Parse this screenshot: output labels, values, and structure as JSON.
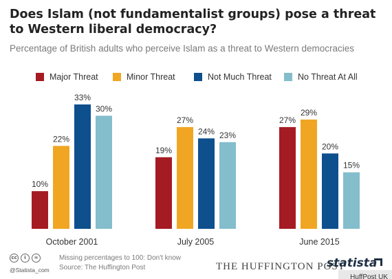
{
  "title": "Does Islam (not fundamentalist groups) pose a threat to Western liberal democracy?",
  "subtitle": "Percentage of British adults who perceive Islam as a threat to Western democracies",
  "chart_data": {
    "type": "bar",
    "title": "Does Islam (not fundamentalist groups) pose a threat to Western liberal democracy?",
    "subtitle": "Percentage of British adults who perceive Islam as a threat to Western democracies",
    "categories": [
      "October 2001",
      "July 2005",
      "June 2015"
    ],
    "series": [
      {
        "name": "Major Threat",
        "values": [
          10,
          19,
          27
        ],
        "labels": [
          "10%",
          "19%",
          "27%"
        ],
        "color": "#a51b24"
      },
      {
        "name": "Minor Threat",
        "values": [
          22,
          27,
          29
        ],
        "labels": [
          "22%",
          "27%",
          "29%"
        ],
        "color": "#f0a623"
      },
      {
        "name": "Not Much Threat",
        "values": [
          33,
          24,
          20
        ],
        "labels": [
          "33%",
          "24%",
          "20%"
        ],
        "color": "#0e4f8e"
      },
      {
        "name": "No Threat At All",
        "values": [
          30,
          23,
          15
        ],
        "labels": [
          "30%",
          "23%",
          "15%"
        ],
        "color": "#84bdcb"
      }
    ],
    "ylim": [
      0,
      33
    ],
    "grid": false,
    "legend": "top",
    "xlabel": "",
    "ylabel": ""
  },
  "footer": {
    "note": "Missing percentages to 100: Don't know",
    "source": "Source: The Huffington Post",
    "handle": "@Statista_com",
    "publisher": "THE HUFFINGTON POST",
    "brand": "statista",
    "credit": "HuffPost UK",
    "cc_icons": [
      {
        "name": "cc-icon",
        "glyph": "cc"
      },
      {
        "name": "by-icon",
        "glyph": "i"
      },
      {
        "name": "nd-icon",
        "glyph": "="
      }
    ]
  }
}
